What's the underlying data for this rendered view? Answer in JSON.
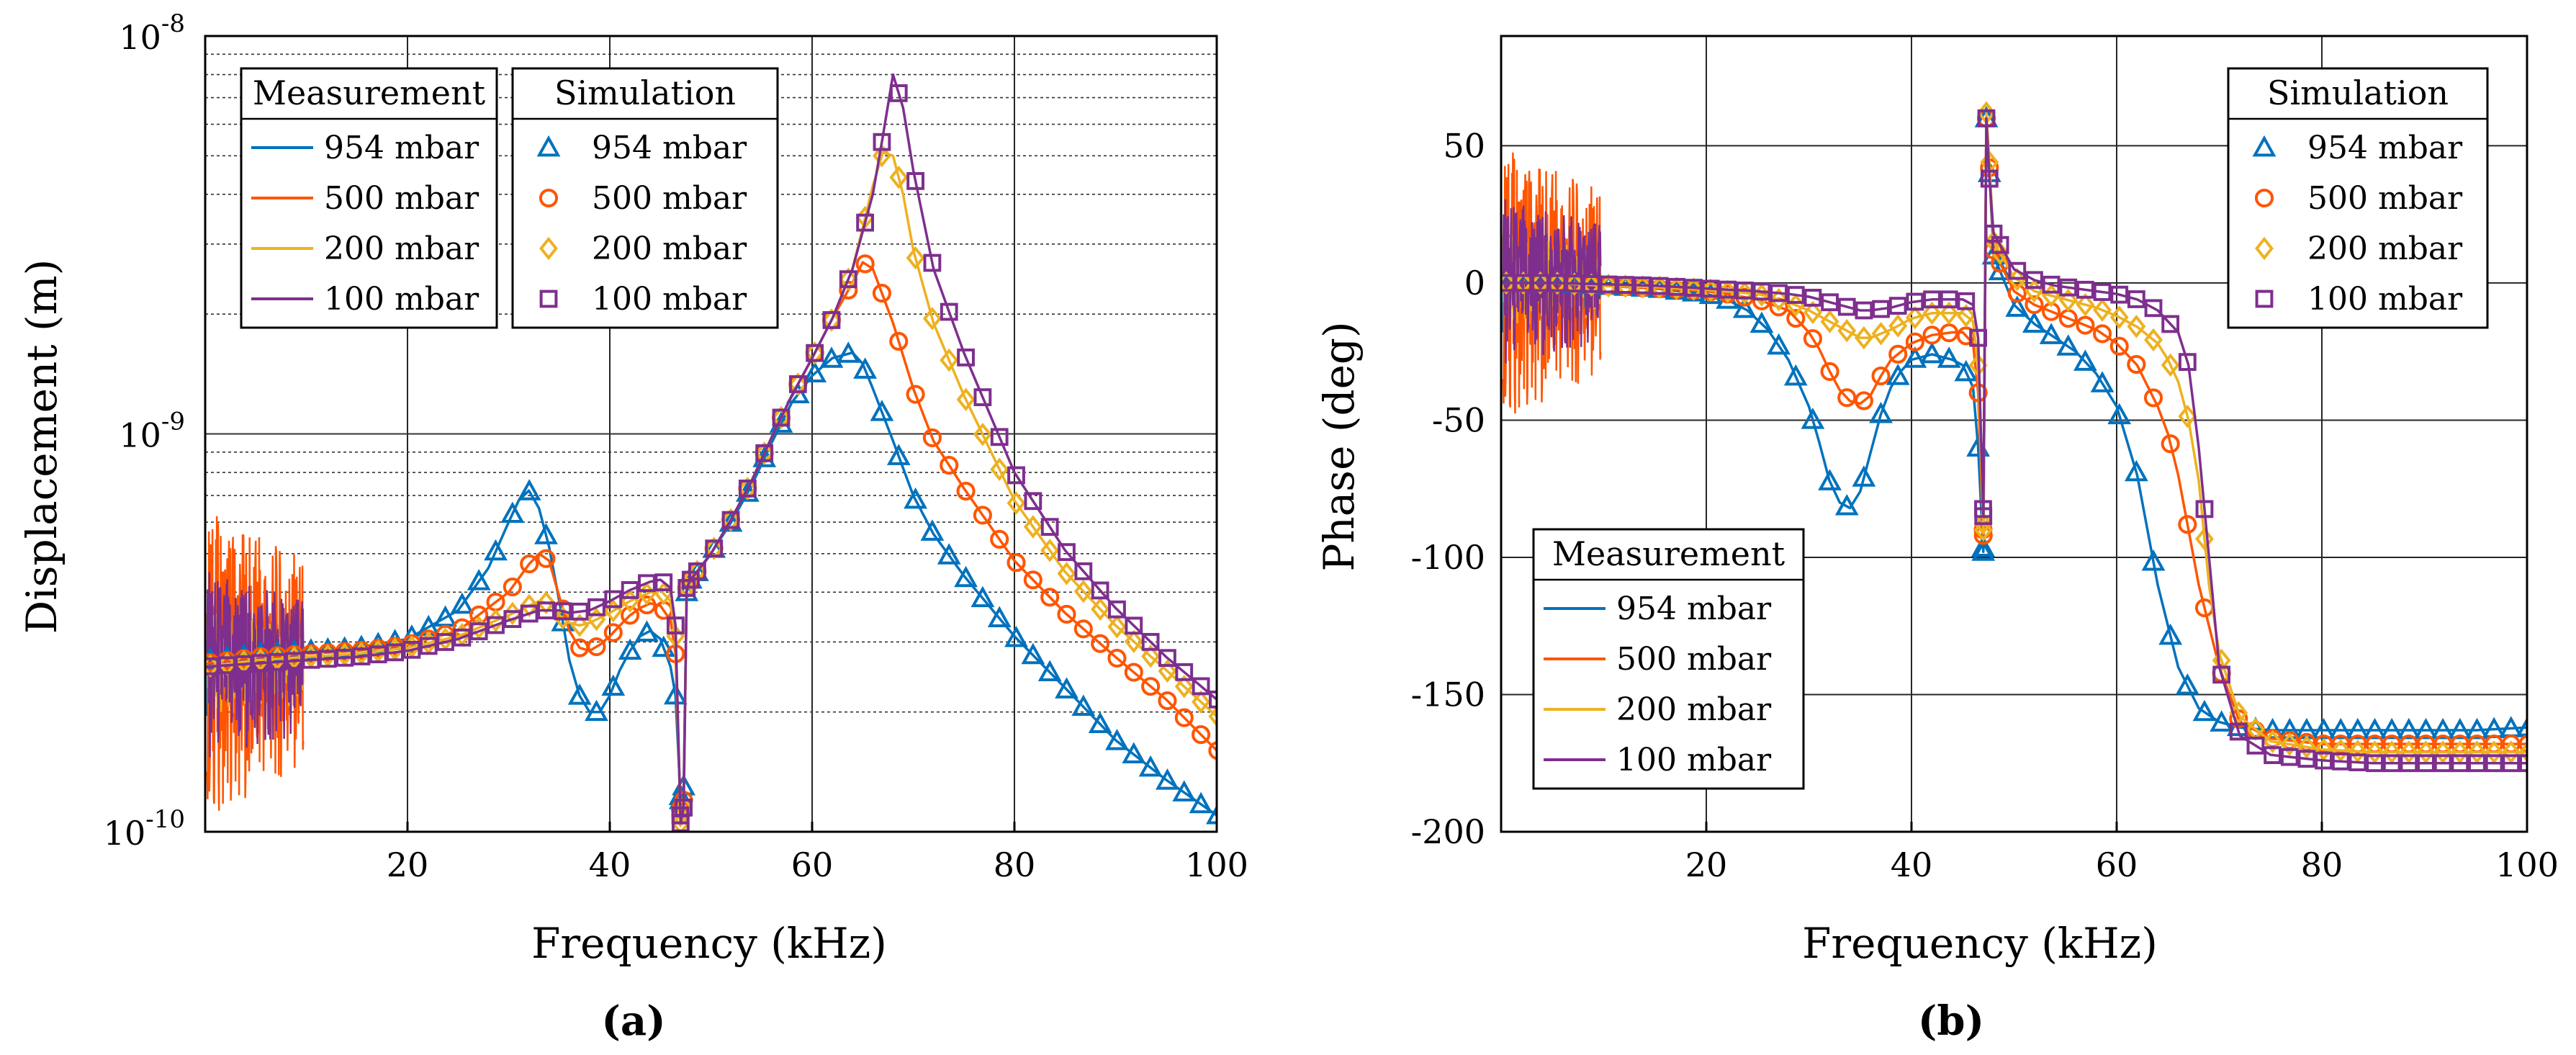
{
  "series_colors": {
    "954 mbar": "#0072BD",
    "500 mbar": "#FF5500",
    "200 mbar": "#EDB120",
    "100 mbar": "#7E2F8E"
  },
  "chart_data": [
    {
      "type": "line",
      "panel_label": "(a)",
      "title": "",
      "xlabel": "Frequency (kHz)",
      "ylabel": "Displacement (m)",
      "yscale": "log",
      "xlim": [
        0,
        100
      ],
      "ylim": [
        1e-10,
        1e-08
      ],
      "x_ticks": [
        "20",
        "40",
        "60",
        "80",
        "100"
      ],
      "y_ticks": [
        {
          "label": "10",
          "exp": "-10"
        },
        {
          "label": "10",
          "exp": "-9"
        },
        {
          "label": "10",
          "exp": "-8"
        }
      ],
      "grid": true,
      "legends": [
        {
          "title": "Measurement",
          "entries": [
            "954 mbar",
            "500 mbar",
            "200 mbar",
            "100 mbar"
          ],
          "placement": "top-left"
        },
        {
          "title": "Simulation",
          "entries": [
            "954 mbar",
            "500 mbar",
            "200 mbar",
            "100 mbar"
          ],
          "placement": "top-left"
        }
      ],
      "series": [
        {
          "name": "954 mbar",
          "marker": "triangle",
          "x": [
            0,
            5,
            10,
            15,
            20,
            25,
            28,
            30,
            31,
            32,
            33,
            34,
            35,
            36,
            37,
            38,
            39,
            40,
            41,
            42,
            43,
            44,
            45,
            46,
            46.5,
            47,
            47.3,
            47.6,
            48,
            49,
            50,
            52,
            54,
            56,
            58,
            60,
            62,
            64,
            65,
            66,
            68,
            70,
            72,
            75,
            80,
            85,
            90,
            95,
            100
          ],
          "y": [
            2.7e-10,
            2.8e-10,
            2.85e-10,
            2.9e-10,
            3.05e-10,
            3.6e-10,
            4.6e-10,
            6e-10,
            6.8e-10,
            7.2e-10,
            6.5e-10,
            5.2e-10,
            3.8e-10,
            2.7e-10,
            2.2e-10,
            2e-10,
            2e-10,
            2.2e-10,
            2.55e-10,
            2.85e-10,
            3.1e-10,
            3.2e-10,
            3.05e-10,
            2.6e-10,
            2.2e-10,
            1.2e-10,
            1.3e-10,
            4e-10,
            4.3e-10,
            4.6e-10,
            5e-10,
            6e-10,
            7.4e-10,
            9.5e-10,
            1.2e-09,
            1.4e-09,
            1.55e-09,
            1.6e-09,
            1.5e-09,
            1.3e-09,
            9.6e-10,
            7e-10,
            5.6e-10,
            4.4e-10,
            3.1e-10,
            2.3e-10,
            1.7e-10,
            1.35e-10,
            1.1e-10
          ]
        },
        {
          "name": "500 mbar",
          "marker": "circle",
          "x": [
            0,
            5,
            10,
            15,
            20,
            25,
            30,
            32,
            33,
            34,
            35,
            36,
            37,
            38,
            39,
            40,
            41,
            42,
            43,
            44,
            45,
            46,
            46.5,
            47,
            47.3,
            47.6,
            48,
            50,
            52,
            54,
            56,
            58,
            60,
            62,
            64,
            65,
            66,
            68,
            70,
            72,
            75,
            80,
            85,
            90,
            95,
            100
          ],
          "y": [
            2.65e-10,
            2.75e-10,
            2.8e-10,
            2.85e-10,
            2.95e-10,
            3.2e-10,
            4e-10,
            4.7e-10,
            5e-10,
            4.8e-10,
            3.9e-10,
            3.2e-10,
            2.9e-10,
            2.85e-10,
            2.95e-10,
            3.1e-10,
            3.3e-10,
            3.5e-10,
            3.65e-10,
            3.75e-10,
            3.7e-10,
            3.4e-10,
            2.8e-10,
            1.1e-10,
            1.2e-10,
            4.1e-10,
            4.3e-10,
            5e-10,
            6.1e-10,
            7.6e-10,
            9.8e-10,
            1.25e-09,
            1.55e-09,
            1.95e-09,
            2.4e-09,
            2.7e-09,
            2.6e-09,
            1.9e-09,
            1.3e-09,
            9.6e-10,
            7.3e-10,
            4.8e-10,
            3.55e-10,
            2.75e-10,
            2.15e-10,
            1.6e-10
          ]
        },
        {
          "name": "200 mbar",
          "marker": "diamond",
          "x": [
            0,
            5,
            10,
            15,
            20,
            25,
            30,
            33,
            34,
            35,
            36,
            37,
            38,
            40,
            42,
            44,
            45,
            46,
            46.5,
            47,
            47.3,
            47.6,
            48,
            50,
            52,
            54,
            56,
            58,
            60,
            62,
            64,
            65,
            66,
            67,
            68,
            69,
            70,
            72,
            75,
            80,
            85,
            90,
            95,
            100
          ],
          "y": [
            2.6e-10,
            2.7e-10,
            2.75e-10,
            2.8e-10,
            2.9e-10,
            3.1e-10,
            3.5e-10,
            3.8e-10,
            3.75e-10,
            3.5e-10,
            3.35e-10,
            3.3e-10,
            3.35e-10,
            3.55e-10,
            3.8e-10,
            4e-10,
            4.05e-10,
            3.8e-10,
            3.1e-10,
            1.05e-10,
            1.15e-10,
            4.1e-10,
            4.3e-10,
            5e-10,
            6.1e-10,
            7.6e-10,
            9.8e-10,
            1.25e-09,
            1.55e-09,
            1.95e-09,
            2.6e-09,
            3.3e-09,
            4.2e-09,
            5.1e-09,
            5e-09,
            4e-09,
            2.9e-09,
            1.9e-09,
            1.25e-09,
            6.8e-10,
            4.5e-10,
            3.3e-10,
            2.55e-10,
            1.95e-10
          ]
        },
        {
          "name": "100 mbar",
          "marker": "square",
          "x": [
            0,
            5,
            10,
            15,
            20,
            25,
            30,
            33,
            35,
            36,
            38,
            40,
            42,
            44,
            45,
            46,
            46.5,
            47,
            47.3,
            47.6,
            48,
            50,
            52,
            54,
            56,
            58,
            60,
            62,
            64,
            66,
            67,
            68,
            69,
            70,
            72,
            75,
            80,
            85,
            90,
            95,
            100
          ],
          "y": [
            2.6e-10,
            2.65e-10,
            2.7e-10,
            2.75e-10,
            2.85e-10,
            3.05e-10,
            3.4e-10,
            3.6e-10,
            3.6e-10,
            3.55e-10,
            3.6e-10,
            3.8e-10,
            4.05e-10,
            4.25e-10,
            4.3e-10,
            4.1e-10,
            3.3e-10,
            1.05e-10,
            1.15e-10,
            4.1e-10,
            4.3e-10,
            5e-10,
            6.1e-10,
            7.6e-10,
            9.8e-10,
            1.25e-09,
            1.55e-09,
            1.95e-09,
            2.6e-09,
            4e-09,
            5.6e-09,
            8e-09,
            6.6e-09,
            4.6e-09,
            2.6e-09,
            1.6e-09,
            8e-10,
            5.1e-10,
            3.65e-10,
            2.75e-10,
            2.15e-10
          ]
        }
      ]
    },
    {
      "type": "line",
      "panel_label": "(b)",
      "title": "",
      "xlabel": "Frequency (kHz)",
      "ylabel": "Phase (deg)",
      "xlim": [
        0,
        100
      ],
      "ylim": [
        -200,
        90
      ],
      "x_ticks": [
        "20",
        "40",
        "60",
        "80",
        "100"
      ],
      "y_ticks": [
        "50",
        "0",
        "-50",
        "-100",
        "-150",
        "-200"
      ],
      "grid": true,
      "legends": [
        {
          "title": "Simulation",
          "entries": [
            "954 mbar",
            "500 mbar",
            "200 mbar",
            "100 mbar"
          ],
          "placement": "top-right"
        },
        {
          "title": "Measurement",
          "entries": [
            "954 mbar",
            "500 mbar",
            "200 mbar",
            "100 mbar"
          ],
          "placement": "bottom-left"
        }
      ],
      "series": [
        {
          "name": "954 mbar",
          "marker": "triangle",
          "x": [
            0,
            5,
            10,
            15,
            20,
            22,
            24,
            26,
            28,
            30,
            31,
            32,
            33,
            34,
            35,
            36,
            37,
            38,
            39,
            40,
            41,
            42,
            43,
            44,
            45,
            46,
            46.5,
            47,
            47.3,
            47.6,
            48,
            50,
            52,
            54,
            56,
            58,
            60,
            62,
            63,
            64,
            65,
            66,
            68,
            70,
            72,
            75,
            80,
            85,
            90,
            95,
            100
          ],
          "y": [
            0,
            0,
            -1,
            -2,
            -4,
            -6,
            -10,
            -17,
            -28,
            -45,
            -58,
            -72,
            -80,
            -82,
            -76,
            -62,
            -48,
            -38,
            -32,
            -28,
            -27,
            -26,
            -27,
            -28,
            -30,
            -38,
            -60,
            -98,
            60,
            40,
            10,
            -8,
            -15,
            -20,
            -25,
            -33,
            -45,
            -70,
            -90,
            -110,
            -125,
            -140,
            -155,
            -160,
            -162,
            -163,
            -163,
            -163,
            -163,
            -163,
            -162
          ]
        },
        {
          "name": "500 mbar",
          "marker": "circle",
          "x": [
            0,
            5,
            10,
            15,
            20,
            22,
            25,
            28,
            30,
            31,
            32,
            33,
            34,
            35,
            36,
            37,
            38,
            40,
            42,
            44,
            45,
            46,
            46.5,
            47,
            47.3,
            47.6,
            48,
            50,
            52,
            54,
            56,
            58,
            60,
            62,
            64,
            65,
            66,
            67,
            68,
            70,
            72,
            75,
            80,
            85,
            90,
            95,
            100
          ],
          "y": [
            0,
            0,
            -1,
            -2,
            -3,
            -4,
            -6,
            -10,
            -18,
            -24,
            -32,
            -39,
            -43,
            -44,
            -41,
            -34,
            -28,
            -22,
            -19,
            -18,
            -18,
            -22,
            -40,
            -92,
            60,
            42,
            12,
            -3,
            -8,
            -11,
            -14,
            -17,
            -22,
            -30,
            -45,
            -55,
            -70,
            -90,
            -110,
            -140,
            -160,
            -166,
            -168,
            -168,
            -168,
            -168,
            -168
          ]
        },
        {
          "name": "200 mbar",
          "marker": "diamond",
          "x": [
            0,
            5,
            10,
            15,
            20,
            25,
            28,
            30,
            32,
            34,
            35,
            36,
            38,
            40,
            42,
            44,
            45,
            46,
            46.5,
            47,
            47.3,
            47.6,
            48,
            50,
            52,
            54,
            56,
            58,
            60,
            62,
            64,
            65,
            66,
            67,
            68,
            69,
            70,
            72,
            75,
            80,
            85,
            90,
            95,
            100
          ],
          "y": [
            0,
            0,
            -1,
            -1.5,
            -2.5,
            -4,
            -7,
            -10,
            -14,
            -18,
            -20,
            -20,
            -17,
            -13,
            -11,
            -11,
            -11,
            -14,
            -30,
            -90,
            62,
            44,
            15,
            2,
            -3,
            -5,
            -7,
            -9,
            -12,
            -16,
            -22,
            -28,
            -36,
            -50,
            -72,
            -110,
            -135,
            -158,
            -167,
            -170,
            -171,
            -171,
            -171,
            -171
          ]
        },
        {
          "name": "100 mbar",
          "marker": "square",
          "x": [
            0,
            5,
            10,
            15,
            20,
            25,
            28,
            30,
            32,
            34,
            35,
            36,
            38,
            40,
            42,
            44,
            45,
            46,
            46.5,
            47,
            47.3,
            47.6,
            48,
            50,
            52,
            54,
            56,
            58,
            60,
            62,
            64,
            66,
            67,
            68,
            69,
            70,
            72,
            75,
            80,
            85,
            90,
            95,
            100
          ],
          "y": [
            0,
            0,
            -0.5,
            -1,
            -2,
            -3,
            -4,
            -5,
            -7,
            -9,
            -10,
            -10,
            -9,
            -7,
            -6,
            -6,
            -6,
            -8,
            -20,
            -85,
            60,
            38,
            18,
            5,
            1,
            -1,
            -2,
            -3,
            -4,
            -6,
            -10,
            -18,
            -30,
            -60,
            -100,
            -140,
            -165,
            -172,
            -174,
            -175,
            -175,
            -175,
            -175
          ]
        }
      ]
    }
  ]
}
